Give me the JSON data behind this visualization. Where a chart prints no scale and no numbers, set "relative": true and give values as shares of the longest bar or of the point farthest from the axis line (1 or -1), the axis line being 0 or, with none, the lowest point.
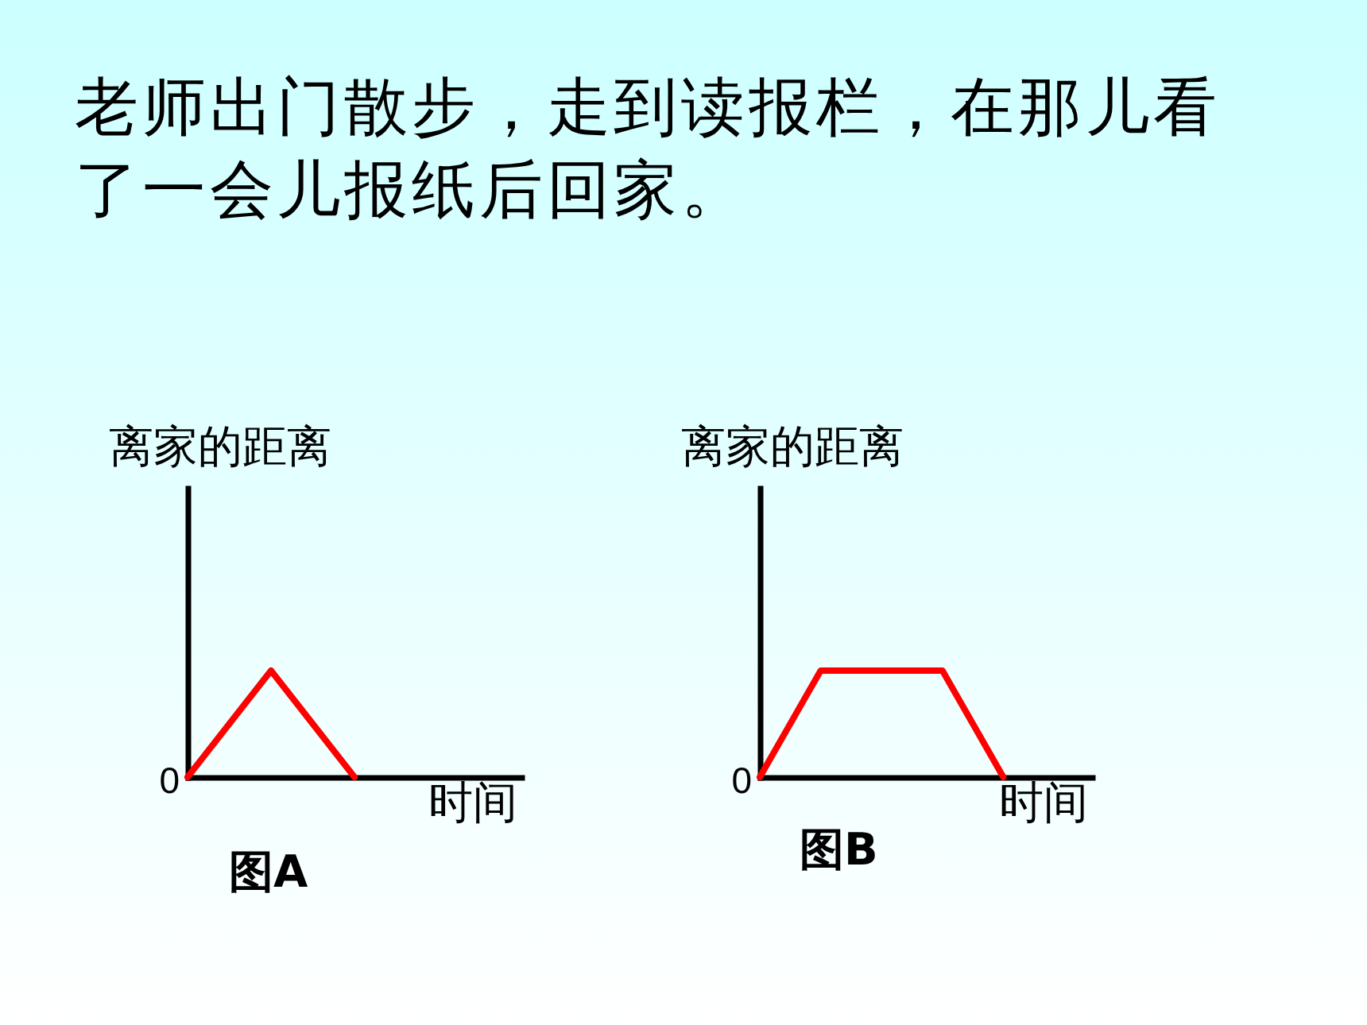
{
  "chart_data": [
    {
      "type": "other",
      "title": "老师出门散步，走到读报栏，在那儿看了一会儿报纸后回家。"
    },
    {
      "type": "line",
      "title": "图A",
      "xlabel": "时间",
      "ylabel": "离家的距离",
      "relative": true,
      "categories": [
        null,
        null,
        null
      ],
      "values": [
        0,
        1,
        0
      ],
      "color": "#ff0000",
      "annotations": [
        "0"
      ]
    },
    {
      "type": "line",
      "title": "图B",
      "xlabel": "时间",
      "ylabel": "离家的距离",
      "relative": true,
      "categories": [
        null,
        null,
        null,
        null,
        null
      ],
      "values": [
        0,
        1,
        1,
        1,
        0
      ],
      "color": "#ff0000",
      "annotations": [
        "0"
      ]
    }
  ]
}
